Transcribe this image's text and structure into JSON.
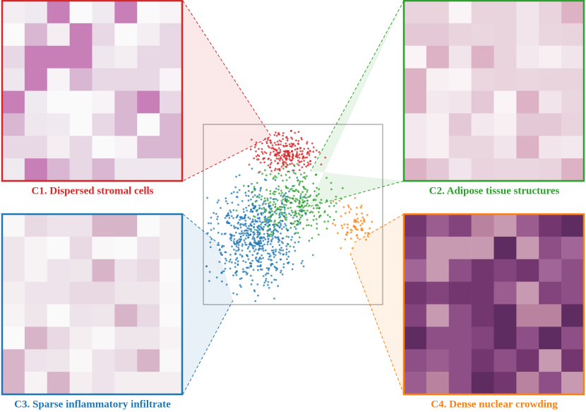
{
  "panels": [
    {
      "label": "C1. Dispersed stromal cells"
    },
    {
      "label": "C2. Adipose tissue structures"
    },
    {
      "label": "C3. Sparse inflammatory infiltrate"
    },
    {
      "label": "C4. Dense nuclear crowding"
    }
  ]
}
